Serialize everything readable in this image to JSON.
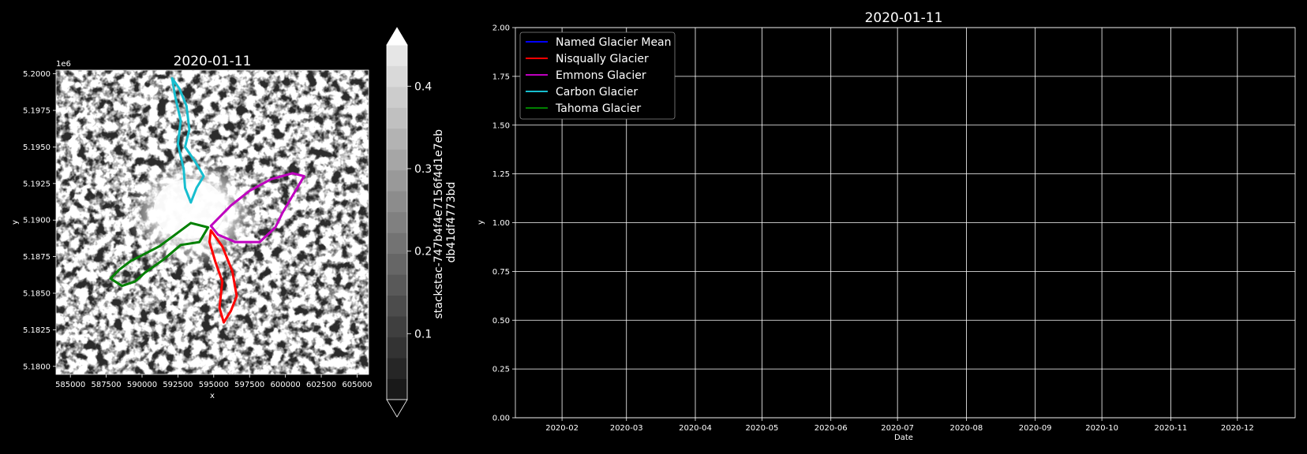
{
  "chart_data": [
    {
      "type": "heatmap",
      "title": "2020-01-11",
      "xlabel": "x",
      "ylabel": "y",
      "y_offset_label": "1e6",
      "xlim": [
        584000,
        605800
      ],
      "ylim": [
        5.17945,
        5.20025
      ],
      "x_ticks": [
        585000,
        587500,
        590000,
        592500,
        595000,
        597500,
        600000,
        602500,
        605000
      ],
      "x_tick_labels": [
        "585000",
        "587500",
        "590000",
        "592500",
        "595000",
        "597500",
        "600000",
        "602500",
        "605000"
      ],
      "y_ticks": [
        5.18,
        5.1825,
        5.185,
        5.1875,
        5.19,
        5.1925,
        5.195,
        5.1975,
        5.2
      ],
      "y_tick_labels": [
        "5.1800",
        "5.1825",
        "5.1850",
        "5.1875",
        "5.1900",
        "5.1925",
        "5.1950",
        "5.1975",
        "5.2000"
      ],
      "colorbar": {
        "label": "stackstac-747b4f4e7156f4d1e7eb\ndb41df4773bd",
        "range": [
          0.02,
          0.45
        ],
        "levels": 17,
        "extend": "both",
        "ticks": [
          0.1,
          0.2,
          0.3,
          0.4
        ],
        "tick_labels": [
          "0.1",
          "0.2",
          "0.3",
          "0.4"
        ]
      },
      "outlines": [
        {
          "name": "Carbon Glacier",
          "color": "#17becf",
          "points": [
            [
              592100,
              5.1997
            ],
            [
              592600,
              5.199
            ],
            [
              593100,
              5.1978
            ],
            [
              593300,
              5.1962
            ],
            [
              593000,
              5.195
            ],
            [
              593700,
              5.194
            ],
            [
              594300,
              5.193
            ],
            [
              593800,
              5.1922
            ],
            [
              593400,
              5.1912
            ],
            [
              593000,
              5.1922
            ],
            [
              592900,
              5.1935
            ],
            [
              592500,
              5.1952
            ],
            [
              592700,
              5.1968
            ],
            [
              592300,
              5.1985
            ]
          ]
        },
        {
          "name": "Emmons Glacier",
          "color": "#bf00bf",
          "points": [
            [
              594800,
              5.1896
            ],
            [
              596200,
              5.191
            ],
            [
              597500,
              5.192
            ],
            [
              599000,
              5.1928
            ],
            [
              600500,
              5.1932
            ],
            [
              601300,
              5.193
            ],
            [
              600400,
              5.1915
            ],
            [
              599800,
              5.1905
            ],
            [
              599300,
              5.1895
            ],
            [
              598200,
              5.1885
            ],
            [
              596500,
              5.1885
            ],
            [
              595300,
              5.189
            ]
          ]
        },
        {
          "name": "Nisqually Glacier",
          "color": "#ff0000",
          "points": [
            [
              594800,
              5.1893
            ],
            [
              595600,
              5.1882
            ],
            [
              596300,
              5.1865
            ],
            [
              596600,
              5.1848
            ],
            [
              596200,
              5.1838
            ],
            [
              595700,
              5.183
            ],
            [
              595400,
              5.184
            ],
            [
              595600,
              5.1858
            ],
            [
              595100,
              5.1872
            ],
            [
              594700,
              5.1885
            ]
          ]
        },
        {
          "name": "Tahoma Glacier",
          "color": "#008000",
          "points": [
            [
              594600,
              5.1895
            ],
            [
              593400,
              5.1898
            ],
            [
              592300,
              5.189
            ],
            [
              591200,
              5.1882
            ],
            [
              590000,
              5.1876
            ],
            [
              589200,
              5.1872
            ],
            [
              588400,
              5.1866
            ],
            [
              587800,
              5.186
            ],
            [
              588600,
              5.1855
            ],
            [
              589500,
              5.1858
            ],
            [
              590200,
              5.1864
            ],
            [
              591500,
              5.1873
            ],
            [
              592700,
              5.1883
            ],
            [
              594000,
              5.1885
            ]
          ]
        }
      ]
    },
    {
      "type": "line",
      "title": "2020-01-11",
      "xlabel": "Date",
      "ylabel": "y",
      "xlim": [
        "2020-01-11",
        "2020-12-27"
      ],
      "ylim": [
        0,
        2
      ],
      "x_ticks": [
        "2020-02-01",
        "2020-03-01",
        "2020-04-01",
        "2020-05-01",
        "2020-06-01",
        "2020-07-01",
        "2020-08-01",
        "2020-09-01",
        "2020-10-01",
        "2020-11-01",
        "2020-12-01"
      ],
      "x_tick_labels": [
        "2020-02",
        "2020-03",
        "2020-04",
        "2020-05",
        "2020-06",
        "2020-07",
        "2020-08",
        "2020-09",
        "2020-10",
        "2020-11",
        "2020-12"
      ],
      "y_ticks": [
        0,
        0.25,
        0.5,
        0.75,
        1,
        1.25,
        1.5,
        1.75,
        2
      ],
      "y_tick_labels": [
        "0.00",
        "0.25",
        "0.50",
        "0.75",
        "1.00",
        "1.25",
        "1.50",
        "1.75",
        "2.00"
      ],
      "grid": true,
      "legend_position": "top-left",
      "series": [
        {
          "name": "Named Glacier Mean",
          "color": "#0000ff",
          "x": [],
          "y": []
        },
        {
          "name": "Nisqually Glacier",
          "color": "#ff0000",
          "x": [],
          "y": []
        },
        {
          "name": "Emmons Glacier",
          "color": "#bf00bf",
          "x": [],
          "y": []
        },
        {
          "name": "Carbon Glacier",
          "color": "#17becf",
          "x": [],
          "y": []
        },
        {
          "name": "Tahoma Glacier",
          "color": "#008000",
          "x": [],
          "y": []
        }
      ]
    }
  ]
}
